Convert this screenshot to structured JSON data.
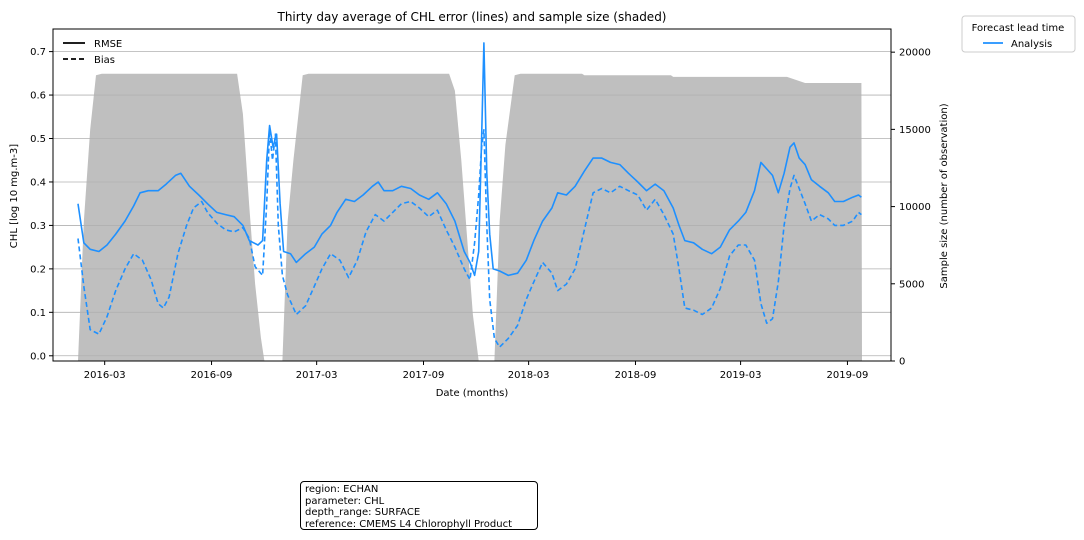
{
  "chart_data": {
    "type": "line",
    "title": "Thirty day average of CHL error (lines) and sample size (shaded)",
    "xlabel": "Date (months)",
    "ylabel": "CHL [log 10 mg.m-3]",
    "y2label": "Sample size (number of observation)",
    "xlim": [
      "2015-12-03",
      "2019-11-15"
    ],
    "ylim": [
      -0.012,
      0.752
    ],
    "y2lim": [
      0,
      21500
    ],
    "x_ticks": [
      "2016-03",
      "2016-09",
      "2017-03",
      "2017-09",
      "2018-03",
      "2018-09",
      "2019-03",
      "2019-09"
    ],
    "y_ticks": [
      "0.0",
      "0.1",
      "0.2",
      "0.3",
      "0.4",
      "0.5",
      "0.6",
      "0.7"
    ],
    "y2_ticks": [
      "0",
      "5000",
      "10000",
      "15000",
      "20000"
    ],
    "grid": "horizontal",
    "legend_line_styles": {
      "placement": "top-left",
      "entries": [
        {
          "label": "RMSE",
          "style": "solid"
        },
        {
          "label": "Bias",
          "style": "dashed"
        }
      ]
    },
    "legend_series": {
      "placement": "outside top-right",
      "title": "Forecast lead time",
      "entries": [
        {
          "label": "Analysis",
          "color": "#1e90ff"
        }
      ]
    },
    "series": [
      {
        "name": "Analysis",
        "metric": "RMSE",
        "color": "#1e90ff",
        "style": "solid",
        "points": [
          [
            "2016-01-15",
            0.35
          ],
          [
            "2016-01-25",
            0.26
          ],
          [
            "2016-02-05",
            0.245
          ],
          [
            "2016-02-20",
            0.24
          ],
          [
            "2016-03-05",
            0.255
          ],
          [
            "2016-03-20",
            0.28
          ],
          [
            "2016-04-05",
            0.31
          ],
          [
            "2016-04-20",
            0.345
          ],
          [
            "2016-05-01",
            0.375
          ],
          [
            "2016-05-15",
            0.38
          ],
          [
            "2016-06-01",
            0.38
          ],
          [
            "2016-06-15",
            0.395
          ],
          [
            "2016-07-01",
            0.415
          ],
          [
            "2016-07-10",
            0.42
          ],
          [
            "2016-07-25",
            0.39
          ],
          [
            "2016-08-10",
            0.37
          ],
          [
            "2016-08-25",
            0.35
          ],
          [
            "2016-09-10",
            0.33
          ],
          [
            "2016-09-25",
            0.325
          ],
          [
            "2016-10-10",
            0.32
          ],
          [
            "2016-10-25",
            0.3
          ],
          [
            "2016-11-05",
            0.265
          ],
          [
            "2016-11-20",
            0.255
          ],
          [
            "2016-11-28",
            0.265
          ],
          [
            "2016-12-05",
            0.45
          ],
          [
            "2016-12-10",
            0.53
          ],
          [
            "2016-12-16",
            0.48
          ],
          [
            "2016-12-22",
            0.51
          ],
          [
            "2016-12-28",
            0.35
          ],
          [
            "2017-01-03",
            0.24
          ],
          [
            "2017-01-15",
            0.235
          ],
          [
            "2017-01-25",
            0.215
          ],
          [
            "2017-02-10",
            0.235
          ],
          [
            "2017-02-25",
            0.25
          ],
          [
            "2017-03-10",
            0.28
          ],
          [
            "2017-03-25",
            0.3
          ],
          [
            "2017-04-05",
            0.33
          ],
          [
            "2017-04-20",
            0.36
          ],
          [
            "2017-05-05",
            0.355
          ],
          [
            "2017-05-20",
            0.37
          ],
          [
            "2017-06-05",
            0.39
          ],
          [
            "2017-06-15",
            0.4
          ],
          [
            "2017-06-25",
            0.38
          ],
          [
            "2017-07-10",
            0.38
          ],
          [
            "2017-07-25",
            0.39
          ],
          [
            "2017-08-10",
            0.385
          ],
          [
            "2017-08-25",
            0.37
          ],
          [
            "2017-09-10",
            0.36
          ],
          [
            "2017-09-25",
            0.375
          ],
          [
            "2017-10-10",
            0.35
          ],
          [
            "2017-10-25",
            0.31
          ],
          [
            "2017-11-10",
            0.24
          ],
          [
            "2017-11-20",
            0.215
          ],
          [
            "2017-11-28",
            0.185
          ],
          [
            "2017-12-05",
            0.24
          ],
          [
            "2017-12-10",
            0.5
          ],
          [
            "2017-12-14",
            0.72
          ],
          [
            "2017-12-19",
            0.42
          ],
          [
            "2017-12-24",
            0.28
          ],
          [
            "2017-12-30",
            0.2
          ],
          [
            "2018-01-10",
            0.195
          ],
          [
            "2018-01-25",
            0.185
          ],
          [
            "2018-02-10",
            0.19
          ],
          [
            "2018-02-25",
            0.22
          ],
          [
            "2018-03-10",
            0.265
          ],
          [
            "2018-03-25",
            0.31
          ],
          [
            "2018-04-10",
            0.34
          ],
          [
            "2018-04-20",
            0.375
          ],
          [
            "2018-05-05",
            0.37
          ],
          [
            "2018-05-20",
            0.39
          ],
          [
            "2018-06-05",
            0.425
          ],
          [
            "2018-06-20",
            0.455
          ],
          [
            "2018-07-05",
            0.455
          ],
          [
            "2018-07-20",
            0.445
          ],
          [
            "2018-08-05",
            0.44
          ],
          [
            "2018-08-20",
            0.42
          ],
          [
            "2018-09-05",
            0.4
          ],
          [
            "2018-09-20",
            0.38
          ],
          [
            "2018-10-05",
            0.395
          ],
          [
            "2018-10-20",
            0.38
          ],
          [
            "2018-11-05",
            0.34
          ],
          [
            "2018-11-15",
            0.3
          ],
          [
            "2018-11-25",
            0.265
          ],
          [
            "2018-12-10",
            0.26
          ],
          [
            "2018-12-25",
            0.245
          ],
          [
            "2019-01-10",
            0.235
          ],
          [
            "2019-01-25",
            0.25
          ],
          [
            "2019-02-10",
            0.29
          ],
          [
            "2019-02-25",
            0.31
          ],
          [
            "2019-03-10",
            0.33
          ],
          [
            "2019-03-25",
            0.38
          ],
          [
            "2019-04-05",
            0.445
          ],
          [
            "2019-04-15",
            0.43
          ],
          [
            "2019-04-25",
            0.415
          ],
          [
            "2019-05-05",
            0.375
          ],
          [
            "2019-05-15",
            0.42
          ],
          [
            "2019-05-25",
            0.48
          ],
          [
            "2019-06-01",
            0.49
          ],
          [
            "2019-06-10",
            0.455
          ],
          [
            "2019-06-20",
            0.44
          ],
          [
            "2019-07-01",
            0.405
          ],
          [
            "2019-07-15",
            0.39
          ],
          [
            "2019-07-30",
            0.375
          ],
          [
            "2019-08-10",
            0.355
          ],
          [
            "2019-08-25",
            0.355
          ],
          [
            "2019-09-10",
            0.365
          ],
          [
            "2019-09-20",
            0.37
          ],
          [
            "2019-09-25",
            0.365
          ]
        ]
      },
      {
        "name": "Analysis",
        "metric": "Bias",
        "color": "#1e90ff",
        "style": "dashed",
        "points": [
          [
            "2016-01-15",
            0.27
          ],
          [
            "2016-01-25",
            0.16
          ],
          [
            "2016-02-05",
            0.06
          ],
          [
            "2016-02-20",
            0.05
          ],
          [
            "2016-03-05",
            0.09
          ],
          [
            "2016-03-20",
            0.15
          ],
          [
            "2016-04-05",
            0.2
          ],
          [
            "2016-04-20",
            0.235
          ],
          [
            "2016-05-05",
            0.22
          ],
          [
            "2016-05-20",
            0.175
          ],
          [
            "2016-06-01",
            0.12
          ],
          [
            "2016-06-10",
            0.11
          ],
          [
            "2016-06-20",
            0.135
          ],
          [
            "2016-07-05",
            0.235
          ],
          [
            "2016-07-20",
            0.3
          ],
          [
            "2016-08-01",
            0.34
          ],
          [
            "2016-08-15",
            0.355
          ],
          [
            "2016-08-25",
            0.33
          ],
          [
            "2016-09-10",
            0.305
          ],
          [
            "2016-09-25",
            0.29
          ],
          [
            "2016-10-10",
            0.285
          ],
          [
            "2016-10-25",
            0.295
          ],
          [
            "2016-11-05",
            0.27
          ],
          [
            "2016-11-15",
            0.205
          ],
          [
            "2016-11-28",
            0.185
          ],
          [
            "2016-12-05",
            0.35
          ],
          [
            "2016-12-10",
            0.52
          ],
          [
            "2016-12-15",
            0.45
          ],
          [
            "2016-12-20",
            0.51
          ],
          [
            "2016-12-25",
            0.3
          ],
          [
            "2017-01-01",
            0.185
          ],
          [
            "2017-01-10",
            0.14
          ],
          [
            "2017-01-25",
            0.095
          ],
          [
            "2017-02-10",
            0.115
          ],
          [
            "2017-02-25",
            0.16
          ],
          [
            "2017-03-10",
            0.2
          ],
          [
            "2017-03-25",
            0.235
          ],
          [
            "2017-04-10",
            0.22
          ],
          [
            "2017-04-25",
            0.18
          ],
          [
            "2017-05-10",
            0.22
          ],
          [
            "2017-05-25",
            0.285
          ],
          [
            "2017-06-10",
            0.325
          ],
          [
            "2017-06-25",
            0.31
          ],
          [
            "2017-07-10",
            0.33
          ],
          [
            "2017-07-25",
            0.35
          ],
          [
            "2017-08-10",
            0.355
          ],
          [
            "2017-08-25",
            0.34
          ],
          [
            "2017-09-10",
            0.32
          ],
          [
            "2017-09-25",
            0.335
          ],
          [
            "2017-10-10",
            0.29
          ],
          [
            "2017-10-25",
            0.25
          ],
          [
            "2017-11-10",
            0.2
          ],
          [
            "2017-11-20",
            0.175
          ],
          [
            "2017-11-28",
            0.26
          ],
          [
            "2017-12-05",
            0.37
          ],
          [
            "2017-12-10",
            0.48
          ],
          [
            "2017-12-14",
            0.52
          ],
          [
            "2017-12-19",
            0.3
          ],
          [
            "2017-12-24",
            0.13
          ],
          [
            "2018-01-01",
            0.04
          ],
          [
            "2018-01-10",
            0.02
          ],
          [
            "2018-01-25",
            0.04
          ],
          [
            "2018-02-10",
            0.07
          ],
          [
            "2018-02-25",
            0.13
          ],
          [
            "2018-03-10",
            0.17
          ],
          [
            "2018-03-25",
            0.215
          ],
          [
            "2018-04-10",
            0.19
          ],
          [
            "2018-04-20",
            0.15
          ],
          [
            "2018-05-05",
            0.165
          ],
          [
            "2018-05-20",
            0.2
          ],
          [
            "2018-06-05",
            0.29
          ],
          [
            "2018-06-20",
            0.375
          ],
          [
            "2018-07-05",
            0.385
          ],
          [
            "2018-07-20",
            0.375
          ],
          [
            "2018-08-05",
            0.39
          ],
          [
            "2018-08-20",
            0.38
          ],
          [
            "2018-09-05",
            0.37
          ],
          [
            "2018-09-20",
            0.335
          ],
          [
            "2018-10-05",
            0.36
          ],
          [
            "2018-10-20",
            0.325
          ],
          [
            "2018-11-05",
            0.28
          ],
          [
            "2018-11-15",
            0.2
          ],
          [
            "2018-11-25",
            0.11
          ],
          [
            "2018-12-10",
            0.105
          ],
          [
            "2018-12-25",
            0.095
          ],
          [
            "2019-01-10",
            0.11
          ],
          [
            "2019-01-25",
            0.155
          ],
          [
            "2019-02-10",
            0.23
          ],
          [
            "2019-02-25",
            0.255
          ],
          [
            "2019-03-10",
            0.255
          ],
          [
            "2019-03-25",
            0.22
          ],
          [
            "2019-04-05",
            0.12
          ],
          [
            "2019-04-15",
            0.075
          ],
          [
            "2019-04-25",
            0.085
          ],
          [
            "2019-05-05",
            0.17
          ],
          [
            "2019-05-15",
            0.3
          ],
          [
            "2019-05-25",
            0.385
          ],
          [
            "2019-06-01",
            0.415
          ],
          [
            "2019-06-10",
            0.385
          ],
          [
            "2019-06-20",
            0.35
          ],
          [
            "2019-07-01",
            0.31
          ],
          [
            "2019-07-15",
            0.325
          ],
          [
            "2019-07-30",
            0.315
          ],
          [
            "2019-08-10",
            0.3
          ],
          [
            "2019-08-25",
            0.3
          ],
          [
            "2019-09-10",
            0.31
          ],
          [
            "2019-09-20",
            0.33
          ],
          [
            "2019-09-25",
            0.325
          ]
        ]
      }
    ],
    "sample_size": {
      "style": "shaded",
      "color": "#bfbfbf",
      "axis": "right",
      "points": [
        [
          "2016-01-15",
          0
        ],
        [
          "2016-01-25",
          9000
        ],
        [
          "2016-02-05",
          15000
        ],
        [
          "2016-02-15",
          18500
        ],
        [
          "2016-02-25",
          18600
        ],
        [
          "2016-04-01",
          18600
        ],
        [
          "2016-10-15",
          18600
        ],
        [
          "2016-10-25",
          16000
        ],
        [
          "2016-11-05",
          10000
        ],
        [
          "2016-11-15",
          5000
        ],
        [
          "2016-11-25",
          1500
        ],
        [
          "2016-12-01",
          0
        ],
        [
          "2017-01-01",
          0
        ],
        [
          "2017-01-10",
          9000
        ],
        [
          "2017-01-20",
          13000
        ],
        [
          "2017-02-05",
          18500
        ],
        [
          "2017-02-15",
          18600
        ],
        [
          "2017-10-15",
          18600
        ],
        [
          "2017-10-25",
          17500
        ],
        [
          "2017-11-05",
          13000
        ],
        [
          "2017-11-15",
          8000
        ],
        [
          "2017-11-25",
          3000
        ],
        [
          "2017-12-05",
          0
        ],
        [
          "2018-01-01",
          0
        ],
        [
          "2018-01-10",
          9000
        ],
        [
          "2018-01-20",
          14000
        ],
        [
          "2018-02-05",
          18500
        ],
        [
          "2018-02-15",
          18600
        ],
        [
          "2018-06-01",
          18600
        ],
        [
          "2018-06-05",
          18500
        ],
        [
          "2018-11-01",
          18500
        ],
        [
          "2018-11-05",
          18400
        ],
        [
          "2019-05-20",
          18400
        ],
        [
          "2019-06-20",
          18000
        ],
        [
          "2019-09-25",
          18000
        ],
        [
          "2019-09-26",
          0
        ]
      ]
    }
  },
  "metadata_box": {
    "lines": [
      "region: ECHAN",
      "parameter: CHL",
      "depth_range: SURFACE",
      "reference: CMEMS L4 Chlorophyll Product"
    ]
  }
}
